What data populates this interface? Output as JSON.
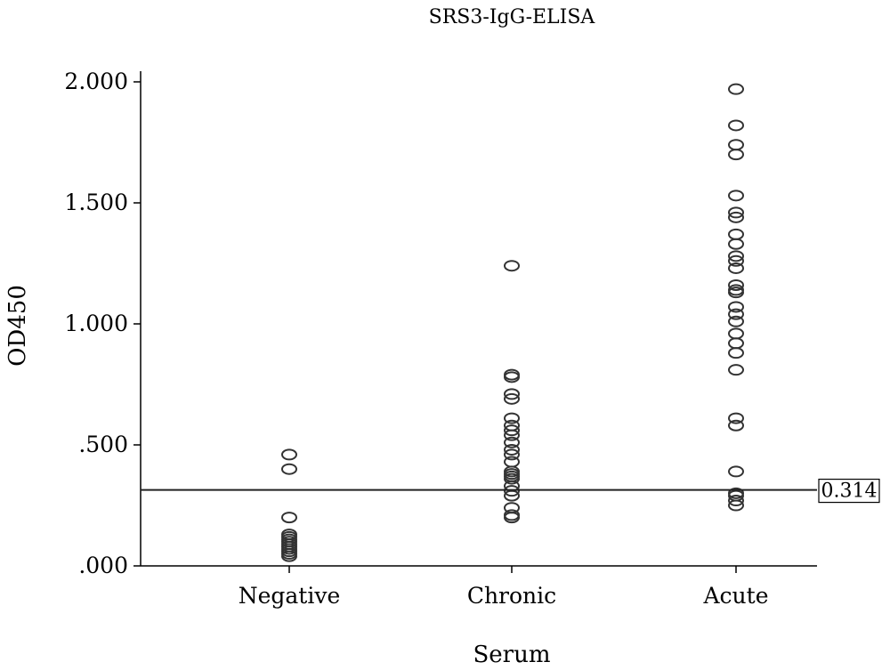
{
  "chart_data": {
    "type": "scatter",
    "title": "SRS3-IgG-ELISA",
    "xlabel": "Serum",
    "ylabel": "OD450",
    "categories": [
      "Negative",
      "Chronic",
      "Acute"
    ],
    "ylim": [
      0,
      2.0
    ],
    "yticks": [
      0,
      0.5,
      1.0,
      1.5,
      2.0
    ],
    "ytick_labels": [
      ".000",
      ".500",
      "1.000",
      "1.500",
      "2.000"
    ],
    "grid": false,
    "marker": "open-circle",
    "series": [
      {
        "category": "Negative",
        "values": [
          0.46,
          0.4,
          0.2,
          0.13,
          0.12,
          0.11,
          0.1,
          0.09,
          0.08,
          0.07,
          0.06,
          0.05,
          0.04
        ]
      },
      {
        "category": "Chronic",
        "values": [
          1.24,
          0.79,
          0.78,
          0.71,
          0.69,
          0.61,
          0.58,
          0.56,
          0.54,
          0.51,
          0.48,
          0.46,
          0.43,
          0.39,
          0.38,
          0.37,
          0.36,
          0.33,
          0.31,
          0.29,
          0.24,
          0.21,
          0.2
        ]
      },
      {
        "category": "Acute",
        "values": [
          1.97,
          1.82,
          1.74,
          1.7,
          1.53,
          1.46,
          1.44,
          1.37,
          1.33,
          1.28,
          1.26,
          1.23,
          1.16,
          1.14,
          1.13,
          1.07,
          1.04,
          1.01,
          0.96,
          0.92,
          0.88,
          0.81,
          0.61,
          0.58,
          0.39,
          0.3,
          0.29,
          0.27,
          0.25
        ]
      }
    ],
    "reference_line": {
      "value": 0.314,
      "label": "0.314"
    }
  }
}
